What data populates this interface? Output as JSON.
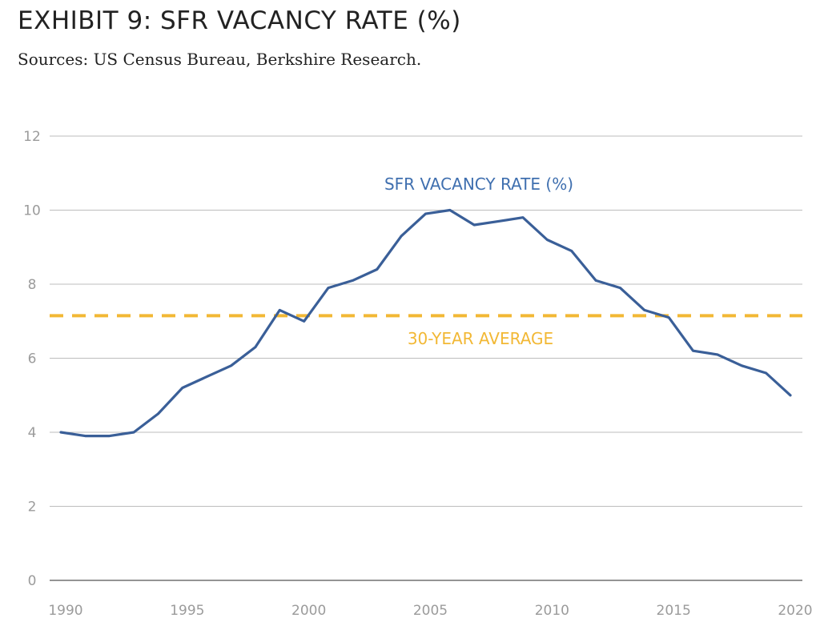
{
  "title": "EXHIBIT 9: SFR VACANCY RATE (%)",
  "subtitle": "Sources: US Census Bureau, Berkshire Research.",
  "colors": {
    "line": "#3a5f98",
    "average": "#f2b835",
    "grid": "#bdbdbd",
    "axis_text": "#9b9b9b"
  },
  "chart_data": {
    "type": "line",
    "title": "EXHIBIT 9: SFR VACANCY RATE (%)",
    "xlabel": "",
    "ylabel": "",
    "ylim": [
      0,
      12
    ],
    "xlim": [
      1990,
      2020
    ],
    "yticks": [
      0,
      2,
      4,
      6,
      8,
      10,
      12
    ],
    "xticks": [
      1990,
      1995,
      2000,
      2005,
      2010,
      2015,
      2020
    ],
    "grid": "horizontal",
    "series": [
      {
        "name": "SFR VACANCY RATE (%)",
        "x": [
          1990,
          1991,
          1992,
          1993,
          1994,
          1995,
          1996,
          1997,
          1998,
          1999,
          2000,
          2001,
          2002,
          2003,
          2004,
          2005,
          2006,
          2007,
          2008,
          2009,
          2010,
          2011,
          2012,
          2013,
          2014,
          2015,
          2016,
          2017,
          2018,
          2019,
          2020
        ],
        "y": [
          4.0,
          3.9,
          3.9,
          4.0,
          4.5,
          5.2,
          5.5,
          5.8,
          6.3,
          7.3,
          7.0,
          7.9,
          8.1,
          8.4,
          9.3,
          9.9,
          10.0,
          9.6,
          9.7,
          9.8,
          9.2,
          8.9,
          8.1,
          7.9,
          7.3,
          7.1,
          6.2,
          6.1,
          5.8,
          5.6,
          5.0
        ]
      }
    ],
    "reference_lines": [
      {
        "name": "30-YEAR AVERAGE",
        "y": 7.15,
        "style": "dashed"
      }
    ]
  }
}
